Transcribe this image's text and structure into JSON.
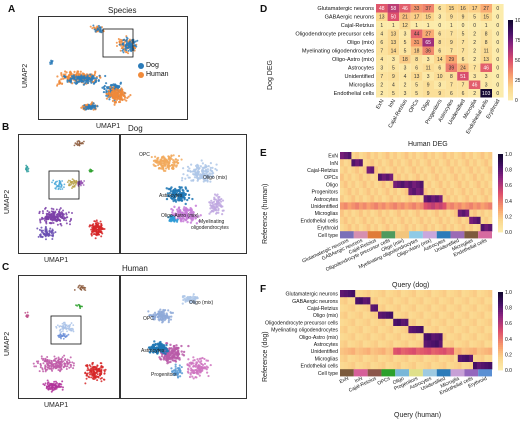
{
  "panels": {
    "A": {
      "label": "A",
      "title": "Species",
      "xlabel": "UMAP1",
      "ylabel": "UMAP2",
      "legend": [
        {
          "name": "Dog",
          "color": "#2b7bb9"
        },
        {
          "name": "Human",
          "color": "#f08a3a"
        }
      ]
    },
    "B": {
      "label": "B",
      "title": "Dog",
      "xlabel": "UMAP1",
      "ylabel": "UMAP2",
      "zoom_labels": [
        "OPC",
        "Oligo (mix)",
        "Astrocytes",
        "Oligo-Astro (mix)",
        "Myelinating",
        "oligodendrocytes"
      ]
    },
    "C": {
      "label": "C",
      "title": "Human",
      "xlabel": "UMAP1",
      "ylabel": "UMAP2",
      "zoom_labels": [
        "OPC",
        "Oligo (mix)",
        "Astrocytes",
        "Progenitors"
      ]
    },
    "D": {
      "label": "D",
      "xlabel": "Human DEG",
      "ylabel": "Dog DEG"
    },
    "E": {
      "label": "E",
      "xlabel": "Query (dog)",
      "ylabel": "Reference (human)"
    },
    "F": {
      "label": "F",
      "xlabel": "Query (human)",
      "ylabel": "Reference (dog)"
    }
  },
  "colors": {
    "dog": "#2b7bb9",
    "human": "#f08a3a",
    "heat_low": "#fbe9a9",
    "heat_high": "#1b0c41"
  },
  "chart_data": [
    {
      "type": "heatmap",
      "panel": "D",
      "rows": [
        "Glutamatergic neurons",
        "GABAergic neurons",
        "Cajal-Retzius",
        "Oligodendrocyte precursor cells",
        "Oligo (mix)",
        "Myelinating oligodendrocytes",
        "Oligo-Astro (mix)",
        "Astrocytes",
        "Unidentified",
        "Microglias",
        "Endothelial cells"
      ],
      "columns": [
        "ExN",
        "InN",
        "Cajal-Retzius",
        "OPCs",
        "Oligo",
        "Progenitors",
        "Astrocytes",
        "Unidentified",
        "Microglia",
        "Endothelial cells",
        "Erythroid"
      ],
      "values": [
        [
          48,
          58,
          46,
          33,
          37,
          6,
          15,
          16,
          17,
          27,
          0
        ],
        [
          13,
          50,
          21,
          17,
          15,
          3,
          9,
          9,
          5,
          15,
          0
        ],
        [
          1,
          1,
          12,
          1,
          1,
          0,
          1,
          0,
          0,
          1,
          0
        ],
        [
          4,
          13,
          3,
          44,
          27,
          6,
          7,
          5,
          2,
          8,
          0
        ],
        [
          6,
          13,
          5,
          31,
          65,
          8,
          9,
          7,
          2,
          8,
          0
        ],
        [
          7,
          14,
          5,
          18,
          36,
          6,
          7,
          7,
          2,
          11,
          0
        ],
        [
          4,
          3,
          18,
          8,
          3,
          14,
          29,
          6,
          2,
          13,
          0
        ],
        [
          3,
          5,
          3,
          6,
          11,
          6,
          39,
          24,
          7,
          46,
          0
        ],
        [
          7,
          9,
          4,
          13,
          3,
          10,
          8,
          51,
          3,
          3,
          0
        ],
        [
          2,
          4,
          2,
          5,
          9,
          3,
          7,
          7,
          46,
          3,
          0
        ],
        [
          2,
          5,
          3,
          5,
          9,
          9,
          6,
          6,
          2,
          103,
          0
        ]
      ],
      "colorbar_ticks": [
        0,
        25,
        50,
        75,
        100
      ],
      "xlabel": "Human DEG",
      "ylabel": "Dog DEG"
    },
    {
      "type": "heatmap",
      "panel": "E",
      "rows": [
        "ExN",
        "InN",
        "Cajal-Retzius",
        "OPCs",
        "Oligo",
        "Progenitors",
        "Astrocytes",
        "Unidentified",
        "Microglias",
        "Endothelial cells",
        "Erythroid",
        "Cell type"
      ],
      "columns": [
        "Glutamatergic neurons",
        "GABAergic neurons",
        "Cajal-Retzius",
        "Oligodendrocyte precursor cells",
        "Oligo (mix)",
        "Myelinating oligodendrocytes",
        "Oligo-Astro (mix)",
        "Astrocytes",
        "Unidentified",
        "Microglias",
        "Endothelial cells"
      ],
      "colorbar_ticks": [
        0.0,
        0.2,
        0.4,
        0.6,
        0.8,
        1.0
      ],
      "xlabel": "Query (dog)",
      "ylabel": "Reference (human)"
    },
    {
      "type": "heatmap",
      "panel": "F",
      "rows": [
        "Glutamatergic neurons",
        "GABAergic neurons",
        "Cajal-Retzius",
        "Oligo (mix)",
        "Oligodendrocyte precursor cells",
        "Myelinating oligodendrocytes",
        "Oligo-Astro (mix)",
        "Astrocytes",
        "Unidentified",
        "Microglias",
        "Endothelial cells",
        "Cell type"
      ],
      "columns": [
        "ExN",
        "InN",
        "Cajal-Retzius",
        "OPCs",
        "Oligo",
        "Progenitors",
        "Astrocytes",
        "Unidentified",
        "Microglia",
        "Endothelial cells",
        "Erythroid"
      ],
      "colorbar_ticks": [
        0.0,
        0.2,
        0.4,
        0.6,
        0.8,
        1.0
      ],
      "xlabel": "Query (human)",
      "ylabel": "Reference (dog)"
    }
  ]
}
